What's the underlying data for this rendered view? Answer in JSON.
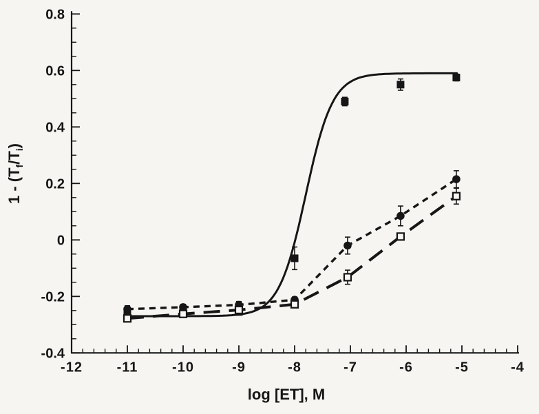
{
  "page": {
    "background": "#f6f5f2",
    "ink": "#161616",
    "open_marker_fill": "#f8f7f4"
  },
  "chart_data": {
    "type": "scatter",
    "title": "",
    "xlabel": "log [ET], M",
    "ylabel": "1 - (Tf/Ti)",
    "ylabel_rich": [
      {
        "text": "1 - (T",
        "sub": false
      },
      {
        "text": "f",
        "sub": true
      },
      {
        "text": "/T",
        "sub": false
      },
      {
        "text": "i",
        "sub": true
      },
      {
        "text": ")",
        "sub": false
      }
    ],
    "xlim": [
      -12,
      -4
    ],
    "ylim": [
      -0.4,
      0.8
    ],
    "x_tick_values": [
      -12,
      -11,
      -10,
      -9,
      -8,
      -7,
      -6,
      -5,
      -4
    ],
    "x_tick_labels": [
      "-12",
      "-11",
      "-10",
      "-9",
      "-8",
      "-7",
      "-6",
      "-5",
      "-4"
    ],
    "x_minor_step": 0.2,
    "y_tick_values": [
      0.8,
      0.6,
      0.4,
      0.2,
      0,
      -0.2,
      -0.4
    ],
    "y_tick_labels": [
      "0.8",
      "0.6",
      "0.4",
      "0.2",
      "0",
      "-0.2",
      "-0.4"
    ],
    "y_minor_step": 0.05,
    "grid": false,
    "legend": "none",
    "series": [
      {
        "name": "filled-squares-solid-fit",
        "marker": "filled-square",
        "line": "solid-fit",
        "fit": {
          "base": -0.27,
          "amplitude": 0.86,
          "log_ec50": -7.8,
          "hill": 1.8,
          "x_start": -11.05,
          "x_end": -5.06
        },
        "points": [
          {
            "x": -11,
            "y": -0.26,
            "err": 0.01
          },
          {
            "x": -10,
            "y": -0.25,
            "err": 0.01
          },
          {
            "x": -9,
            "y": -0.255,
            "err": 0.01
          },
          {
            "x": -8,
            "y": -0.065,
            "err": 0.04
          },
          {
            "x": -7.1,
            "y": 0.49,
            "err": 0.015
          },
          {
            "x": -6.1,
            "y": 0.55,
            "err": 0.02
          },
          {
            "x": -5.1,
            "y": 0.575,
            "err": 0.012
          }
        ]
      },
      {
        "name": "filled-circles-short-dash",
        "marker": "filled-circle",
        "line": "short-dash",
        "points": [
          {
            "x": -11,
            "y": -0.245,
            "err": 0.012
          },
          {
            "x": -10,
            "y": -0.238,
            "err": 0.01
          },
          {
            "x": -9,
            "y": -0.23,
            "err": 0.012
          },
          {
            "x": -8,
            "y": -0.212,
            "err": 0.01
          },
          {
            "x": -7.05,
            "y": -0.02,
            "err": 0.03
          },
          {
            "x": -6.1,
            "y": 0.085,
            "err": 0.035
          },
          {
            "x": -5.1,
            "y": 0.215,
            "err": 0.03
          }
        ]
      },
      {
        "name": "open-squares-long-dash",
        "marker": "open-square",
        "line": "long-dash",
        "points": [
          {
            "x": -11,
            "y": -0.278,
            "err": 0.012
          },
          {
            "x": -10,
            "y": -0.262,
            "err": 0.008
          },
          {
            "x": -9,
            "y": -0.248,
            "err": 0.008
          },
          {
            "x": -8,
            "y": -0.228,
            "err": 0.008
          },
          {
            "x": -7.05,
            "y": -0.132,
            "err": 0.025
          },
          {
            "x": -6.1,
            "y": 0.012,
            "err": 0.012
          },
          {
            "x": -5.1,
            "y": 0.155,
            "err": 0.028
          }
        ]
      }
    ]
  }
}
